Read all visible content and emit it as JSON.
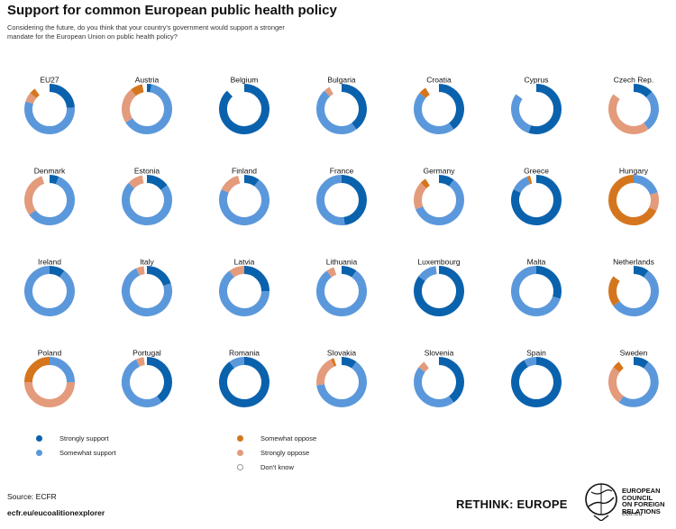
{
  "title": "Support for common European public health policy",
  "subtitle": "Considering the future, do you think that your country's government would support a stronger mandate for the European Union on public health policy?",
  "colors": {
    "strongly_support": "#0a62ad",
    "somewhat_support": "#5b98db",
    "somewhat_oppose": "#d5761e",
    "strongly_oppose": "#e39b7c",
    "dont_know": "#ffffff",
    "dont_know_border": "#999999"
  },
  "legend": [
    {
      "key": "strongly_support",
      "label": "Strongly support"
    },
    {
      "key": "somewhat_support",
      "label": "Somewhat support"
    },
    {
      "key": "somewhat_oppose",
      "label": "Somewhat oppose"
    },
    {
      "key": "strongly_oppose",
      "label": "Strongly oppose"
    },
    {
      "key": "dont_know",
      "label": "Don't know"
    }
  ],
  "chart_data": {
    "type": "pie",
    "subtype": "donut-small-multiples",
    "unit": "percent",
    "segment_order": [
      "Strongly support",
      "Somewhat support",
      "Strongly oppose",
      "Somewhat oppose",
      "Don't know"
    ],
    "countries": [
      {
        "name": "EU27",
        "values": [
          24,
          56,
          6,
          4,
          10
        ]
      },
      {
        "name": "Austria",
        "values": [
          3,
          63,
          23,
          8,
          3
        ]
      },
      {
        "name": "Belgium",
        "values": [
          88,
          0,
          0,
          0,
          12
        ]
      },
      {
        "name": "Bulgaria",
        "values": [
          40,
          48,
          4,
          0,
          8
        ]
      },
      {
        "name": "Croatia",
        "values": [
          40,
          46,
          0,
          5,
          9
        ]
      },
      {
        "name": "Cyprus",
        "values": [
          55,
          30,
          0,
          0,
          15
        ]
      },
      {
        "name": "Czech Rep.",
        "values": [
          13,
          27,
          45,
          0,
          15
        ]
      },
      {
        "name": "Denmark",
        "values": [
          6,
          59,
          30,
          0,
          5
        ]
      },
      {
        "name": "Estonia",
        "values": [
          15,
          72,
          10,
          0,
          3
        ]
      },
      {
        "name": "Finland",
        "values": [
          10,
          72,
          14,
          0,
          4
        ]
      },
      {
        "name": "France",
        "values": [
          48,
          52,
          0,
          0,
          0
        ]
      },
      {
        "name": "Germany",
        "values": [
          10,
          59,
          18,
          4,
          9
        ]
      },
      {
        "name": "Greece",
        "values": [
          82,
          12,
          0,
          2,
          4
        ]
      },
      {
        "name": "Hungary",
        "values": [
          0,
          20,
          12,
          68,
          0
        ]
      },
      {
        "name": "Ireland",
        "values": [
          10,
          90,
          0,
          0,
          0
        ]
      },
      {
        "name": "Italy",
        "values": [
          20,
          73,
          5,
          0,
          2
        ]
      },
      {
        "name": "Latvia",
        "values": [
          25,
          65,
          10,
          0,
          0
        ]
      },
      {
        "name": "Lithuania",
        "values": [
          10,
          80,
          5,
          0,
          5
        ]
      },
      {
        "name": "Luxembourg",
        "values": [
          85,
          13,
          0,
          0,
          2
        ]
      },
      {
        "name": "Malta",
        "values": [
          30,
          70,
          0,
          0,
          0
        ]
      },
      {
        "name": "Netherlands",
        "values": [
          10,
          55,
          0,
          20,
          15
        ]
      },
      {
        "name": "Poland",
        "values": [
          0,
          25,
          50,
          25,
          0
        ]
      },
      {
        "name": "Portugal",
        "values": [
          40,
          53,
          5,
          0,
          2
        ]
      },
      {
        "name": "Romania",
        "values": [
          90,
          10,
          0,
          0,
          0
        ]
      },
      {
        "name": "Slovakia",
        "values": [
          10,
          63,
          20,
          2,
          5
        ]
      },
      {
        "name": "Slovenia",
        "values": [
          40,
          45,
          5,
          0,
          10
        ]
      },
      {
        "name": "Spain",
        "values": [
          92,
          8,
          0,
          0,
          0
        ]
      },
      {
        "name": "Sweden",
        "values": [
          10,
          50,
          25,
          5,
          10
        ]
      }
    ]
  },
  "source": "Source: ECFR",
  "url": "ecfr.eu/eucoalitionexplorer",
  "brand": "RETHINK: EUROPE",
  "ecfr_lines": [
    "EUROPEAN",
    "COUNCIL",
    "ON FOREIGN",
    "RELATIONS"
  ],
  "ecfr_url": "ecfr.eu"
}
